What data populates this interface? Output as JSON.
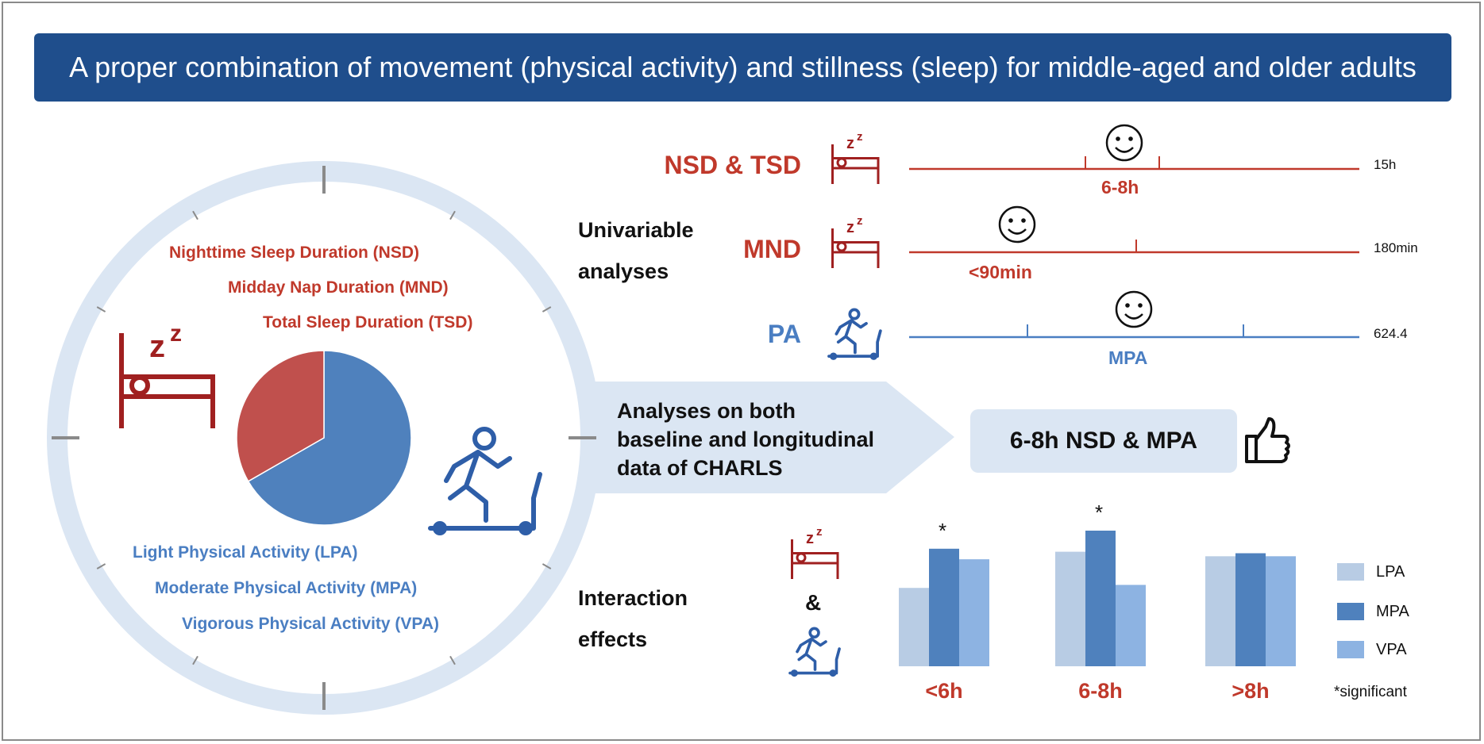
{
  "title": "A proper combination of movement (physical activity) and stillness (sleep) for middle-aged and older adults",
  "clock": {
    "sleep_labels": [
      "Nighttime Sleep Duration (NSD)",
      "Midday Nap Duration (MND)",
      "Total Sleep Duration (TSD)"
    ],
    "pa_labels": [
      "Light Physical Activity (LPA)",
      "Moderate Physical Activity (MPA)",
      "Vigorous Physical Activity (VPA)"
    ],
    "pie_fractions": {
      "sleep": 0.333,
      "physical_activity": 0.667
    },
    "colors": {
      "sleep": "#c0504d",
      "physical_activity": "#4f81bd",
      "ring": "#dbe6f3"
    }
  },
  "arrow": {
    "text_lines": [
      "Analyses on both",
      "baseline and longitudinal",
      "data of CHARLS"
    ]
  },
  "result": {
    "text": "6-8h NSD & MPA",
    "icon": "thumbs-up-icon"
  },
  "univariable": {
    "label_lines": [
      "Univariable",
      "analyses"
    ],
    "rows": [
      {
        "label": "NSD & TSD",
        "optimal": "6-8h",
        "max": "15h",
        "color": "#c0392b"
      },
      {
        "label": "MND",
        "optimal": "<90min",
        "max": "180min",
        "color": "#c0392b"
      },
      {
        "label": "PA",
        "optimal": "MPA",
        "max": "624.4",
        "color": "#4a7ec2"
      }
    ]
  },
  "interaction": {
    "label_lines": [
      "Interaction",
      "effects"
    ],
    "ampersand": "&",
    "footnote": "*significant"
  },
  "chart_data": {
    "type": "bar",
    "categories": [
      "<6h",
      "6-8h",
      ">8h"
    ],
    "series": [
      {
        "name": "LPA",
        "values": [
          0.52,
          0.76,
          0.73
        ],
        "color": "#b8cce4"
      },
      {
        "name": "MPA",
        "values": [
          0.78,
          0.9,
          0.75
        ],
        "color": "#4f81bd"
      },
      {
        "name": "VPA",
        "values": [
          0.71,
          0.54,
          0.73
        ],
        "color": "#8db3e2"
      }
    ],
    "significant_marker": "*",
    "significant_categories": [
      "<6h",
      "6-8h"
    ],
    "ylim": [
      0,
      1
    ],
    "grid": false,
    "legend_position": "right"
  }
}
